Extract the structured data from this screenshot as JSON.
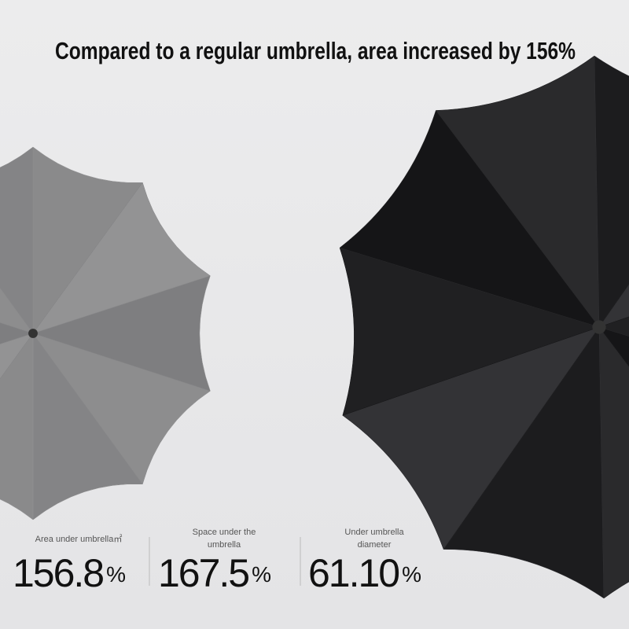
{
  "header": {
    "title": "Compared to a regular umbrella, area increased by 156%"
  },
  "stats": [
    {
      "label": "Area under umbrella㎡",
      "value": "156.8",
      "unit": "%"
    },
    {
      "label": "Space under the umbrella",
      "value": "167.5",
      "unit": "%"
    },
    {
      "label": "Under umbrella diameter",
      "value": "61.10",
      "unit": "%"
    }
  ]
}
